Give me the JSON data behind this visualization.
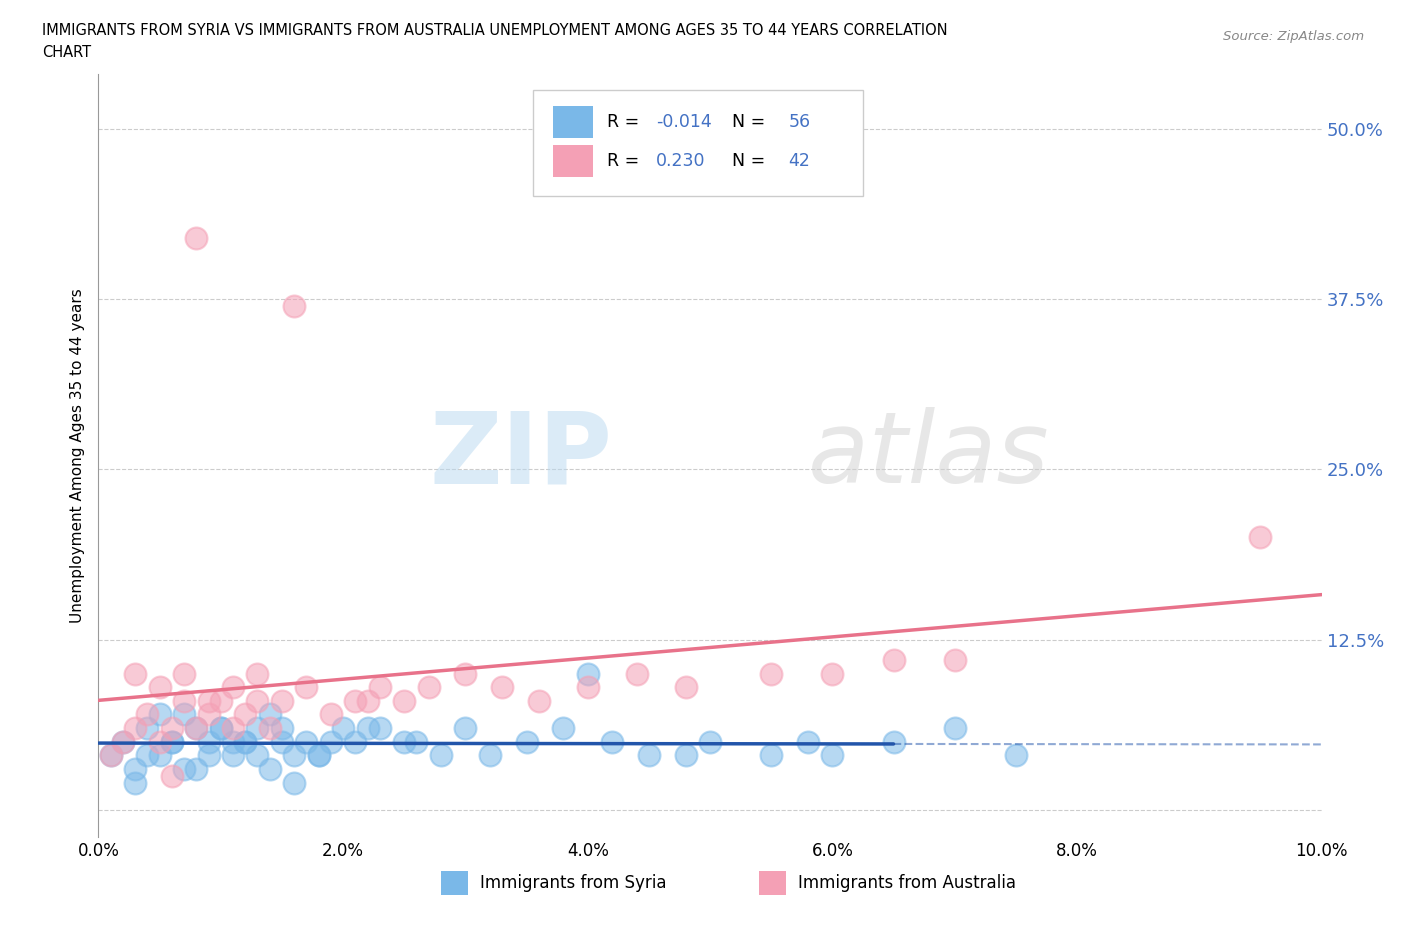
{
  "title_line1": "IMMIGRANTS FROM SYRIA VS IMMIGRANTS FROM AUSTRALIA UNEMPLOYMENT AMONG AGES 35 TO 44 YEARS CORRELATION",
  "title_line2": "CHART",
  "source": "Source: ZipAtlas.com",
  "ylabel": "Unemployment Among Ages 35 to 44 years",
  "xlim": [
    0.0,
    0.1
  ],
  "ylim": [
    -0.02,
    0.54
  ],
  "yticks": [
    0.0,
    0.125,
    0.25,
    0.375,
    0.5
  ],
  "ytick_labels": [
    "",
    "12.5%",
    "25.0%",
    "37.5%",
    "50.0%"
  ],
  "xticks": [
    0.0,
    0.02,
    0.04,
    0.06,
    0.08,
    0.1
  ],
  "xtick_labels": [
    "0.0%",
    "2.0%",
    "4.0%",
    "6.0%",
    "8.0%",
    "10.0%"
  ],
  "syria_color": "#7ab8e8",
  "australia_color": "#f4a0b5",
  "syria_line_color": "#2255aa",
  "australia_line_color": "#e8728a",
  "syria_R": -0.014,
  "syria_N": 56,
  "australia_R": 0.23,
  "australia_N": 42,
  "legend_labels": [
    "Immigrants from Syria",
    "Immigrants from Australia"
  ],
  "watermark_zip": "ZIP",
  "watermark_atlas": "atlas",
  "background_color": "#ffffff",
  "grid_color": "#cccccc",
  "syria_x": [
    0.001,
    0.002,
    0.003,
    0.004,
    0.005,
    0.006,
    0.007,
    0.008,
    0.009,
    0.01,
    0.011,
    0.012,
    0.013,
    0.014,
    0.015,
    0.003,
    0.004,
    0.006,
    0.007,
    0.009,
    0.01,
    0.012,
    0.013,
    0.015,
    0.016,
    0.017,
    0.018,
    0.02,
    0.021,
    0.005,
    0.008,
    0.011,
    0.014,
    0.018,
    0.022,
    0.025,
    0.028,
    0.03,
    0.035,
    0.04,
    0.045,
    0.05,
    0.06,
    0.065,
    0.07,
    0.075,
    0.016,
    0.019,
    0.023,
    0.026,
    0.032,
    0.038,
    0.042,
    0.048,
    0.055,
    0.058
  ],
  "syria_y": [
    0.04,
    0.05,
    0.03,
    0.06,
    0.04,
    0.05,
    0.07,
    0.03,
    0.05,
    0.06,
    0.04,
    0.05,
    0.06,
    0.03,
    0.05,
    0.02,
    0.04,
    0.05,
    0.03,
    0.04,
    0.06,
    0.05,
    0.04,
    0.06,
    0.02,
    0.05,
    0.04,
    0.06,
    0.05,
    0.07,
    0.06,
    0.05,
    0.07,
    0.04,
    0.06,
    0.05,
    0.04,
    0.06,
    0.05,
    0.1,
    0.04,
    0.05,
    0.04,
    0.05,
    0.06,
    0.04,
    0.04,
    0.05,
    0.06,
    0.05,
    0.04,
    0.06,
    0.05,
    0.04,
    0.04,
    0.05
  ],
  "australia_x": [
    0.001,
    0.002,
    0.003,
    0.004,
    0.005,
    0.006,
    0.007,
    0.008,
    0.009,
    0.01,
    0.011,
    0.012,
    0.013,
    0.014,
    0.003,
    0.005,
    0.007,
    0.009,
    0.011,
    0.013,
    0.015,
    0.017,
    0.019,
    0.021,
    0.023,
    0.025,
    0.027,
    0.03,
    0.033,
    0.036,
    0.04,
    0.044,
    0.048,
    0.055,
    0.06,
    0.065,
    0.07,
    0.008,
    0.016,
    0.022,
    0.095,
    0.006
  ],
  "australia_y": [
    0.04,
    0.05,
    0.06,
    0.07,
    0.05,
    0.06,
    0.08,
    0.06,
    0.07,
    0.08,
    0.06,
    0.07,
    0.08,
    0.06,
    0.1,
    0.09,
    0.1,
    0.08,
    0.09,
    0.1,
    0.08,
    0.09,
    0.07,
    0.08,
    0.09,
    0.08,
    0.09,
    0.1,
    0.09,
    0.08,
    0.09,
    0.1,
    0.09,
    0.1,
    0.1,
    0.11,
    0.11,
    0.42,
    0.37,
    0.08,
    0.2,
    0.025
  ]
}
